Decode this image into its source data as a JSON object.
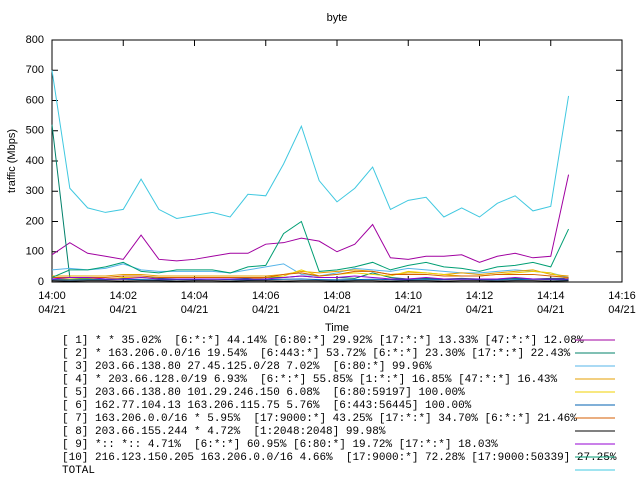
{
  "chart_data": {
    "type": "line",
    "title": "byte",
    "x_label": "Time",
    "y_label": "traffic (Mbps)",
    "x": [
      0,
      0.5,
      1,
      1.5,
      2,
      2.5,
      3,
      3.5,
      4,
      4.5,
      5,
      5.5,
      6,
      6.5,
      7,
      7.5,
      8,
      8.5,
      9,
      9.5,
      10,
      10.5,
      11,
      11.5,
      12,
      12.5,
      13,
      13.5,
      14,
      14.5
    ],
    "xlim": [
      0,
      16
    ],
    "xticks": [
      {
        "value": 0,
        "label": "14:00",
        "date": "04/21"
      },
      {
        "value": 2,
        "label": "14:02",
        "date": "04/21"
      },
      {
        "value": 4,
        "label": "14:04",
        "date": "04/21"
      },
      {
        "value": 6,
        "label": "14:06",
        "date": "04/21"
      },
      {
        "value": 8,
        "label": "14:08",
        "date": "04/21"
      },
      {
        "value": 10,
        "label": "14:10",
        "date": "04/21"
      },
      {
        "value": 12,
        "label": "14:12",
        "date": "04/21"
      },
      {
        "value": 14,
        "label": "14:14",
        "date": "04/21"
      },
      {
        "value": 16,
        "label": "14:16",
        "date": "04/21"
      }
    ],
    "ylim": [
      0,
      800
    ],
    "yticks": [
      0,
      100,
      200,
      300,
      400,
      500,
      600,
      700,
      800
    ],
    "grid": false,
    "series": [
      {
        "name": "[ 1] * * 35.02%  [6:*:*] 44.14% [6:80:*] 29.92% [17:*:*] 13.33% [47:*:*] 12.08%",
        "color": "#a000a0",
        "values": [
          90,
          130,
          95,
          85,
          75,
          155,
          75,
          70,
          75,
          85,
          95,
          95,
          125,
          130,
          145,
          135,
          100,
          125,
          190,
          80,
          75,
          85,
          85,
          90,
          65,
          85,
          95,
          80,
          85,
          355
        ]
      },
      {
        "name": "[ 2] * 163.206.0.0/16 19.54%  [6:443:*] 53.72% [6:*:*] 23.30% [17:*:*] 22.43%",
        "color": "#00806a",
        "values": [
          520,
          15,
          12,
          10,
          12,
          15,
          12,
          10,
          10,
          10,
          10,
          12,
          15,
          15,
          20,
          15,
          15,
          12,
          30,
          15,
          10,
          12,
          10,
          12,
          10,
          10,
          12,
          10,
          12,
          12
        ]
      },
      {
        "name": "[ 3] 203.66.138.80 27.45.125.0/28 7.02%  [6:80:*] 99.96%",
        "color": "#56b4e9",
        "values": [
          40,
          45,
          40,
          45,
          60,
          40,
          35,
          35,
          35,
          35,
          30,
          40,
          50,
          60,
          25,
          20,
          30,
          45,
          40,
          35,
          45,
          40,
          35,
          30,
          30,
          35,
          40,
          35,
          30,
          15
        ]
      },
      {
        "name": "[ 4] * 203.66.128.0/19 6.93%  [6:*:*] 55.85% [1:*:*] 16.85% [47:*:*] 16.43%",
        "color": "#e69f00",
        "values": [
          20,
          20,
          20,
          20,
          25,
          25,
          20,
          20,
          20,
          20,
          20,
          20,
          20,
          25,
          35,
          30,
          35,
          40,
          35,
          25,
          30,
          30,
          25,
          30,
          25,
          30,
          35,
          40,
          25,
          20
        ]
      },
      {
        "name": "[ 5] 203.66.138.80 101.29.246.150 6.08%  [6:80:59197] 100.00%",
        "color": "#f0d000",
        "values": [
          10,
          10,
          10,
          10,
          15,
          15,
          10,
          10,
          10,
          10,
          10,
          10,
          15,
          20,
          40,
          20,
          25,
          30,
          25,
          20,
          35,
          30,
          25,
          20,
          20,
          25,
          30,
          35,
          30,
          10
        ]
      },
      {
        "name": "[ 6] 162.77.104.13 163.206.115.75 5.76%  [6:443:56445] 100.00%",
        "color": "#0060b0",
        "values": [
          8,
          7,
          8,
          8,
          9,
          8,
          7,
          8,
          8,
          9,
          8,
          7,
          8,
          9,
          10,
          8,
          7,
          8,
          9,
          8,
          7,
          8,
          8,
          9,
          8,
          7,
          8,
          9,
          8,
          7
        ]
      },
      {
        "name": "[ 7] 163.206.0.0/16 * 5.95%  [17:9000:*] 43.25% [17:*:*] 34.70% [6:*:*] 21.46%",
        "color": "#d55e00",
        "values": [
          15,
          15,
          15,
          15,
          20,
          20,
          15,
          15,
          15,
          15,
          15,
          15,
          15,
          25,
          30,
          20,
          25,
          35,
          35,
          25,
          25,
          25,
          20,
          20,
          20,
          25,
          25,
          25,
          20,
          15
        ]
      },
      {
        "name": "[ 8] 203.66.155.244 * 4.72%  [1:2048:2048] 99.98%",
        "color": "#000000",
        "values": [
          4,
          3,
          4,
          4,
          3,
          4,
          4,
          3,
          4,
          4,
          3,
          4,
          4,
          3,
          4,
          4,
          3,
          4,
          4,
          3,
          4,
          4,
          3,
          4,
          4,
          3,
          4,
          4,
          3,
          4
        ]
      },
      {
        "name": "[ 9] *:: *:: 4.71%  [6:*:*] 60.95% [6:80:*] 19.72% [17:*:*] 18.03%",
        "color": "#9400d3",
        "values": [
          10,
          15,
          15,
          10,
          10,
          15,
          10,
          10,
          10,
          10,
          10,
          10,
          10,
          15,
          20,
          15,
          15,
          20,
          15,
          10,
          10,
          15,
          10,
          10,
          10,
          10,
          15,
          10,
          10,
          10
        ]
      },
      {
        "name": "[10] 216.123.150.205 163.206.0.0/16 4.66%  [17:9000:*] 72.28% [17:9000:50339] 27.25%",
        "color": "#009e73",
        "values": [
          15,
          40,
          40,
          50,
          65,
          35,
          30,
          40,
          40,
          40,
          30,
          50,
          55,
          160,
          200,
          35,
          40,
          50,
          65,
          40,
          55,
          65,
          50,
          45,
          35,
          50,
          55,
          65,
          50,
          175
        ]
      },
      {
        "name": "TOTAL",
        "color": "#40c8e0",
        "values": [
          700,
          310,
          245,
          230,
          240,
          340,
          240,
          210,
          220,
          230,
          215,
          290,
          285,
          390,
          515,
          335,
          265,
          310,
          380,
          240,
          270,
          280,
          215,
          245,
          215,
          260,
          285,
          235,
          250,
          615
        ]
      }
    ]
  }
}
